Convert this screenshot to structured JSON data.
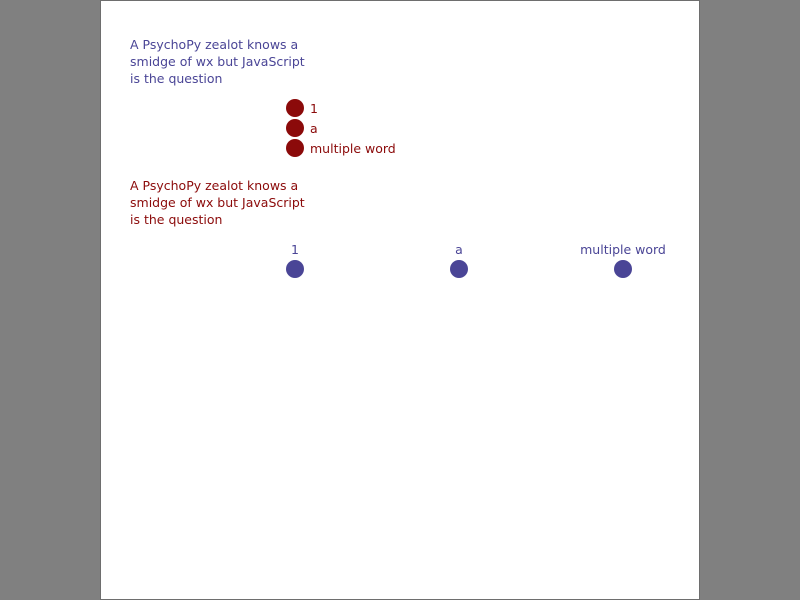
{
  "colors": {
    "accent_blue": "#4a4596",
    "accent_red": "#8b0a0a",
    "window_bg": "#808080",
    "page_bg": "#ffffff"
  },
  "survey": {
    "question_1": {
      "text": "A PsychoPy zealot knows a smidge of wx but JavaScript is the question",
      "options": [
        {
          "label": "1"
        },
        {
          "label": "a"
        },
        {
          "label": "multiple word"
        }
      ]
    },
    "question_2": {
      "text": "A PsychoPy zealot knows a smidge of wx but JavaScript is the question",
      "options": [
        {
          "label": "1"
        },
        {
          "label": "a"
        },
        {
          "label": "multiple word"
        }
      ]
    }
  }
}
